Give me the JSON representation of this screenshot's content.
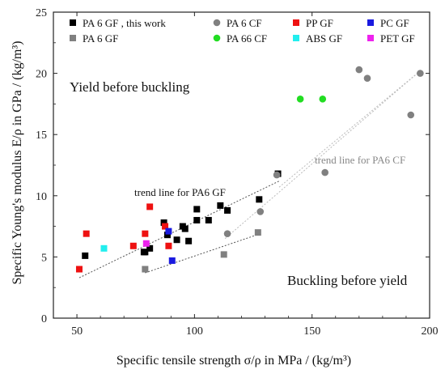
{
  "chart_data": {
    "type": "scatter",
    "xlabel": "Specific tensile strength σ/ρ in MPa / (kg/m³)",
    "ylabel": "Specific Young's modulus E/ρ in GPa / (kg/m³)",
    "xlim": [
      40,
      200
    ],
    "ylim": [
      0,
      25
    ],
    "xticks": [
      50,
      100,
      150,
      200
    ],
    "yticks": [
      0,
      5,
      10,
      15,
      20,
      25
    ],
    "grid": false,
    "legend_position": "top",
    "series": [
      {
        "name": "PA 6 GF , this work",
        "color": "#000000",
        "marker": "square",
        "points": [
          [
            53.5,
            5.1
          ],
          [
            78.5,
            5.4
          ],
          [
            79,
            5.4
          ],
          [
            81,
            5.7
          ],
          [
            87,
            7.8
          ],
          [
            88.5,
            6.8
          ],
          [
            92.5,
            6.4
          ],
          [
            95,
            7.5
          ],
          [
            96,
            7.3
          ],
          [
            97.5,
            6.3
          ],
          [
            101,
            8.9
          ],
          [
            101,
            8.0
          ],
          [
            106,
            8.0
          ],
          [
            111,
            9.2
          ],
          [
            114,
            8.8
          ],
          [
            127.5,
            9.7
          ],
          [
            135.5,
            11.8
          ]
        ]
      },
      {
        "name": "PA 6 GF",
        "color": "#808080",
        "marker": "square",
        "points": [
          [
            79,
            4.0
          ],
          [
            112.5,
            5.2
          ],
          [
            127,
            7.0
          ]
        ]
      },
      {
        "name": "PA 6 CF",
        "color": "#808080",
        "marker": "circle",
        "points": [
          [
            114,
            6.9
          ],
          [
            128,
            8.7
          ],
          [
            135,
            11.7
          ],
          [
            155.5,
            11.9
          ],
          [
            170,
            20.3
          ],
          [
            173.5,
            19.6
          ],
          [
            192,
            16.6
          ],
          [
            196,
            20.0
          ]
        ]
      },
      {
        "name": "PA 66 CF",
        "color": "#22dd22",
        "marker": "circle",
        "points": [
          [
            145,
            17.9
          ],
          [
            154.5,
            17.9
          ]
        ]
      },
      {
        "name": "PP GF",
        "color": "#ee1111",
        "marker": "square",
        "points": [
          [
            51,
            4.0
          ],
          [
            54,
            6.9
          ],
          [
            74,
            5.9
          ],
          [
            79,
            6.9
          ],
          [
            81,
            9.1
          ],
          [
            87.5,
            7.5
          ],
          [
            89,
            5.9
          ]
        ]
      },
      {
        "name": "ABS GF",
        "color": "#22eeee",
        "marker": "square",
        "points": [
          [
            61.5,
            5.7
          ]
        ]
      },
      {
        "name": "PC GF",
        "color": "#1a1ae0",
        "marker": "square",
        "points": [
          [
            89,
            7.1
          ],
          [
            90.5,
            4.7
          ]
        ]
      },
      {
        "name": "PET GF",
        "color": "#ee22ee",
        "marker": "square",
        "points": [
          [
            79.5,
            6.1
          ]
        ]
      }
    ],
    "trend_lines": [
      {
        "label": "trend line for PA6 GF",
        "color": "#555555",
        "segments": [
          [
            [
              51,
              3.3
            ],
            [
              136,
              11.2
            ]
          ],
          [
            [
              79,
              3.7
            ],
            [
              128,
              6.9
            ]
          ]
        ]
      },
      {
        "label": "trend line for PA6 CF",
        "color": "#bbbbbb",
        "segments": [
          [
            [
              113,
              6.5
            ],
            [
              196,
              20.2
            ]
          ],
          [
            [
              136,
              10.7
            ],
            [
              196,
              20.2
            ]
          ]
        ]
      }
    ],
    "annotations": {
      "top_left": "Yield before buckling",
      "bottom_right": "Buckling before yield"
    }
  }
}
